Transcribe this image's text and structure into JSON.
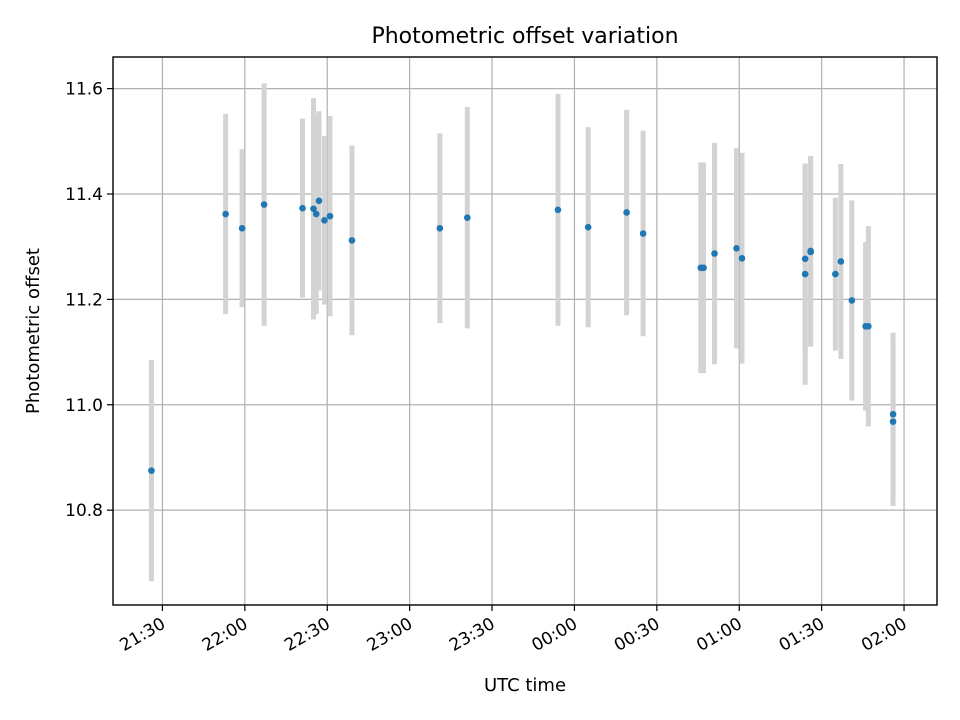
{
  "chart_data": {
    "type": "scatter",
    "title": "Photometric offset variation",
    "xlabel": "UTC time",
    "ylabel": "Photometric offset",
    "x_ticks": [
      "21:30",
      "22:00",
      "22:30",
      "23:00",
      "23:30",
      "00:00",
      "00:30",
      "01:00",
      "01:30",
      "02:00"
    ],
    "x_range": [
      "21:12",
      "02:12"
    ],
    "y_ticks": [
      "10.8",
      "11.0",
      "11.2",
      "11.4",
      "11.6"
    ],
    "ylim": [
      10.62,
      11.66
    ],
    "grid": true,
    "colors": {
      "point": "#1f77b4",
      "error_bar": "#d3d3d3",
      "grid": "#b0b0b0"
    },
    "points": [
      {
        "t": "21:26",
        "y": 10.875,
        "err": 0.21
      },
      {
        "t": "21:53",
        "y": 11.362,
        "err": 0.19
      },
      {
        "t": "21:59",
        "y": 11.335,
        "err": 0.15
      },
      {
        "t": "22:07",
        "y": 11.38,
        "err": 0.23
      },
      {
        "t": "22:21",
        "y": 11.373,
        "err": 0.17
      },
      {
        "t": "22:25",
        "y": 11.372,
        "err": 0.21
      },
      {
        "t": "22:26",
        "y": 11.362,
        "err": 0.19
      },
      {
        "t": "22:27",
        "y": 11.387,
        "err": 0.17
      },
      {
        "t": "22:29",
        "y": 11.35,
        "err": 0.16
      },
      {
        "t": "22:31",
        "y": 11.358,
        "err": 0.19
      },
      {
        "t": "22:39",
        "y": 11.312,
        "err": 0.18
      },
      {
        "t": "23:11",
        "y": 11.335,
        "err": 0.18
      },
      {
        "t": "23:21",
        "y": 11.355,
        "err": 0.21
      },
      {
        "t": "23:54",
        "y": 11.37,
        "err": 0.22
      },
      {
        "t": "00:05",
        "y": 11.337,
        "err": 0.19
      },
      {
        "t": "00:19",
        "y": 11.365,
        "err": 0.195
      },
      {
        "t": "00:25",
        "y": 11.325,
        "err": 0.195
      },
      {
        "t": "00:46",
        "y": 11.26,
        "err": 0.2
      },
      {
        "t": "00:47",
        "y": 11.26,
        "err": 0.2
      },
      {
        "t": "00:51",
        "y": 11.287,
        "err": 0.21
      },
      {
        "t": "00:59",
        "y": 11.297,
        "err": 0.19
      },
      {
        "t": "01:01",
        "y": 11.278,
        "err": 0.2
      },
      {
        "t": "01:24",
        "y": 11.248,
        "err": 0.21
      },
      {
        "t": "01:24",
        "y": 11.277,
        "err": 0.18
      },
      {
        "t": "01:26",
        "y": 11.29,
        "err": 0.18
      },
      {
        "t": "01:26",
        "y": 11.292,
        "err": 0.18
      },
      {
        "t": "01:35",
        "y": 11.248,
        "err": 0.145
      },
      {
        "t": "01:37",
        "y": 11.272,
        "err": 0.185
      },
      {
        "t": "01:41",
        "y": 11.198,
        "err": 0.19
      },
      {
        "t": "01:46",
        "y": 11.149,
        "err": 0.16
      },
      {
        "t": "01:47",
        "y": 11.149,
        "err": 0.19
      },
      {
        "t": "01:56",
        "y": 10.982,
        "err": 0.155
      },
      {
        "t": "01:56",
        "y": 10.968,
        "err": 0.16
      }
    ]
  }
}
